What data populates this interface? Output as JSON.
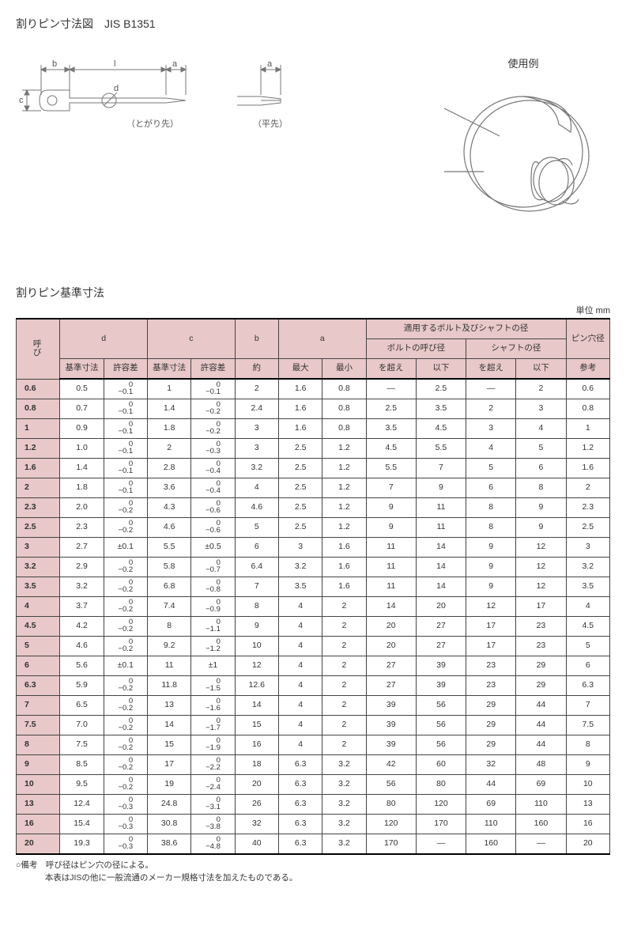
{
  "title_main": "割りピン寸法図　JIS B1351",
  "diagram_labels": {
    "pointed": "（とがり先）",
    "flat": "（平先）",
    "usage": "使用例",
    "dim_b": "b",
    "dim_l": "l",
    "dim_a": "a",
    "dim_c": "c",
    "dim_d": "d"
  },
  "section_title": "割りピン基準寸法",
  "unit_label": "単位 mm",
  "headers": {
    "nominal": "呼び",
    "d": "d",
    "c": "c",
    "b": "b",
    "a": "a",
    "bolt_shaft": "適用するボルト及びシャフトの径",
    "hole": "ピン穴径",
    "base": "基準寸法",
    "tol": "許容差",
    "approx": "約",
    "max": "最大",
    "min": "最小",
    "bolt": "ボルトの呼び径",
    "shaft": "シャフトの径",
    "over": "を超え",
    "below": "以下",
    "ref": "参考"
  },
  "notes_line1": "○備考　呼び径はピン穴の径による。",
  "notes_line2": "本表はJISの他に一般流通のメーカー規格寸法を加えたものである。",
  "colors": {
    "header_bg": "#e8c8c8",
    "border": "#444444",
    "text": "#333333"
  },
  "rows": [
    {
      "n": "0.6",
      "d": "0.5",
      "dt": [
        "0",
        "−0.1"
      ],
      "c": "1",
      "ct": [
        "0",
        "−0.1"
      ],
      "b": "2",
      "amax": "1.6",
      "amin": "0.8",
      "bo": "―",
      "bb": "2.5",
      "so": "―",
      "sb": "2",
      "h": "0.6"
    },
    {
      "n": "0.8",
      "d": "0.7",
      "dt": [
        "0",
        "−0.1"
      ],
      "c": "1.4",
      "ct": [
        "0",
        "−0.2"
      ],
      "b": "2.4",
      "amax": "1.6",
      "amin": "0.8",
      "bo": "2.5",
      "bb": "3.5",
      "so": "2",
      "sb": "3",
      "h": "0.8"
    },
    {
      "n": "1",
      "d": "0.9",
      "dt": [
        "0",
        "−0.1"
      ],
      "c": "1.8",
      "ct": [
        "0",
        "−0.2"
      ],
      "b": "3",
      "amax": "1.6",
      "amin": "0.8",
      "bo": "3.5",
      "bb": "4.5",
      "so": "3",
      "sb": "4",
      "h": "1"
    },
    {
      "n": "1.2",
      "d": "1.0",
      "dt": [
        "0",
        "−0.1"
      ],
      "c": "2",
      "ct": [
        "0",
        "−0.3"
      ],
      "b": "3",
      "amax": "2.5",
      "amin": "1.2",
      "bo": "4.5",
      "bb": "5.5",
      "so": "4",
      "sb": "5",
      "h": "1.2"
    },
    {
      "n": "1.6",
      "d": "1.4",
      "dt": [
        "0",
        "−0.1"
      ],
      "c": "2.8",
      "ct": [
        "0",
        "−0.4"
      ],
      "b": "3.2",
      "amax": "2.5",
      "amin": "1.2",
      "bo": "5.5",
      "bb": "7",
      "so": "5",
      "sb": "6",
      "h": "1.6"
    },
    {
      "n": "2",
      "d": "1.8",
      "dt": [
        "0",
        "−0.1"
      ],
      "c": "3.6",
      "ct": [
        "0",
        "−0.4"
      ],
      "b": "4",
      "amax": "2.5",
      "amin": "1.2",
      "bo": "7",
      "bb": "9",
      "so": "6",
      "sb": "8",
      "h": "2"
    },
    {
      "n": "2.3",
      "d": "2.0",
      "dt": [
        "0",
        "−0.2"
      ],
      "c": "4.3",
      "ct": [
        "0",
        "−0.6"
      ],
      "b": "4.6",
      "amax": "2.5",
      "amin": "1.2",
      "bo": "9",
      "bb": "11",
      "so": "8",
      "sb": "9",
      "h": "2.3"
    },
    {
      "n": "2.5",
      "d": "2.3",
      "dt": [
        "0",
        "−0.2"
      ],
      "c": "4.6",
      "ct": [
        "0",
        "−0.6"
      ],
      "b": "5",
      "amax": "2.5",
      "amin": "1.2",
      "bo": "9",
      "bb": "11",
      "so": "8",
      "sb": "9",
      "h": "2.5"
    },
    {
      "n": "3",
      "d": "2.7",
      "dt": [
        "±0.1"
      ],
      "c": "5.5",
      "ct": [
        "±0.5"
      ],
      "b": "6",
      "amax": "3",
      "amin": "1.6",
      "bo": "11",
      "bb": "14",
      "so": "9",
      "sb": "12",
      "h": "3"
    },
    {
      "n": "3.2",
      "d": "2.9",
      "dt": [
        "0",
        "−0.2"
      ],
      "c": "5.8",
      "ct": [
        "0",
        "−0.7"
      ],
      "b": "6.4",
      "amax": "3.2",
      "amin": "1.6",
      "bo": "11",
      "bb": "14",
      "so": "9",
      "sb": "12",
      "h": "3.2"
    },
    {
      "n": "3.5",
      "d": "3.2",
      "dt": [
        "0",
        "−0.2"
      ],
      "c": "6.8",
      "ct": [
        "0",
        "−0.8"
      ],
      "b": "7",
      "amax": "3.5",
      "amin": "1.6",
      "bo": "11",
      "bb": "14",
      "so": "9",
      "sb": "12",
      "h": "3.5"
    },
    {
      "n": "4",
      "d": "3.7",
      "dt": [
        "0",
        "−0.2"
      ],
      "c": "7.4",
      "ct": [
        "0",
        "−0.9"
      ],
      "b": "8",
      "amax": "4",
      "amin": "2",
      "bo": "14",
      "bb": "20",
      "so": "12",
      "sb": "17",
      "h": "4"
    },
    {
      "n": "4.5",
      "d": "4.2",
      "dt": [
        "0",
        "−0.2"
      ],
      "c": "8",
      "ct": [
        "0",
        "−1.1"
      ],
      "b": "9",
      "amax": "4",
      "amin": "2",
      "bo": "20",
      "bb": "27",
      "so": "17",
      "sb": "23",
      "h": "4.5"
    },
    {
      "n": "5",
      "d": "4.6",
      "dt": [
        "0",
        "−0.2"
      ],
      "c": "9.2",
      "ct": [
        "0",
        "−1.2"
      ],
      "b": "10",
      "amax": "4",
      "amin": "2",
      "bo": "20",
      "bb": "27",
      "so": "17",
      "sb": "23",
      "h": "5"
    },
    {
      "n": "6",
      "d": "5.6",
      "dt": [
        "±0.1"
      ],
      "c": "11",
      "ct": [
        "±1"
      ],
      "b": "12",
      "amax": "4",
      "amin": "2",
      "bo": "27",
      "bb": "39",
      "so": "23",
      "sb": "29",
      "h": "6"
    },
    {
      "n": "6.3",
      "d": "5.9",
      "dt": [
        "0",
        "−0.2"
      ],
      "c": "11.8",
      "ct": [
        "0",
        "−1.5"
      ],
      "b": "12.6",
      "amax": "4",
      "amin": "2",
      "bo": "27",
      "bb": "39",
      "so": "23",
      "sb": "29",
      "h": "6.3"
    },
    {
      "n": "7",
      "d": "6.5",
      "dt": [
        "0",
        "−0.2"
      ],
      "c": "13",
      "ct": [
        "0",
        "−1.6"
      ],
      "b": "14",
      "amax": "4",
      "amin": "2",
      "bo": "39",
      "bb": "56",
      "so": "29",
      "sb": "44",
      "h": "7"
    },
    {
      "n": "7.5",
      "d": "7.0",
      "dt": [
        "0",
        "−0.2"
      ],
      "c": "14",
      "ct": [
        "0",
        "−1.7"
      ],
      "b": "15",
      "amax": "4",
      "amin": "2",
      "bo": "39",
      "bb": "56",
      "so": "29",
      "sb": "44",
      "h": "7.5"
    },
    {
      "n": "8",
      "d": "7.5",
      "dt": [
        "0",
        "−0.2"
      ],
      "c": "15",
      "ct": [
        "0",
        "−1.9"
      ],
      "b": "16",
      "amax": "4",
      "amin": "2",
      "bo": "39",
      "bb": "56",
      "so": "29",
      "sb": "44",
      "h": "8"
    },
    {
      "n": "9",
      "d": "8.5",
      "dt": [
        "0",
        "−0.2"
      ],
      "c": "17",
      "ct": [
        "0",
        "−2.2"
      ],
      "b": "18",
      "amax": "6.3",
      "amin": "3.2",
      "bo": "42",
      "bb": "60",
      "so": "32",
      "sb": "48",
      "h": "9"
    },
    {
      "n": "10",
      "d": "9.5",
      "dt": [
        "0",
        "−0.2"
      ],
      "c": "19",
      "ct": [
        "0",
        "−2.4"
      ],
      "b": "20",
      "amax": "6.3",
      "amin": "3.2",
      "bo": "56",
      "bb": "80",
      "so": "44",
      "sb": "69",
      "h": "10"
    },
    {
      "n": "13",
      "d": "12.4",
      "dt": [
        "0",
        "−0.3"
      ],
      "c": "24.8",
      "ct": [
        "0",
        "−3.1"
      ],
      "b": "26",
      "amax": "6.3",
      "amin": "3.2",
      "bo": "80",
      "bb": "120",
      "so": "69",
      "sb": "110",
      "h": "13"
    },
    {
      "n": "16",
      "d": "15.4",
      "dt": [
        "0",
        "−0.3"
      ],
      "c": "30.8",
      "ct": [
        "0",
        "−3.8"
      ],
      "b": "32",
      "amax": "6.3",
      "amin": "3.2",
      "bo": "120",
      "bb": "170",
      "so": "110",
      "sb": "160",
      "h": "16"
    },
    {
      "n": "20",
      "d": "19.3",
      "dt": [
        "0",
        "−0.3"
      ],
      "c": "38.6",
      "ct": [
        "0",
        "−4.8"
      ],
      "b": "40",
      "amax": "6.3",
      "amin": "3.2",
      "bo": "170",
      "bb": "―",
      "so": "160",
      "sb": "―",
      "h": "20"
    }
  ]
}
